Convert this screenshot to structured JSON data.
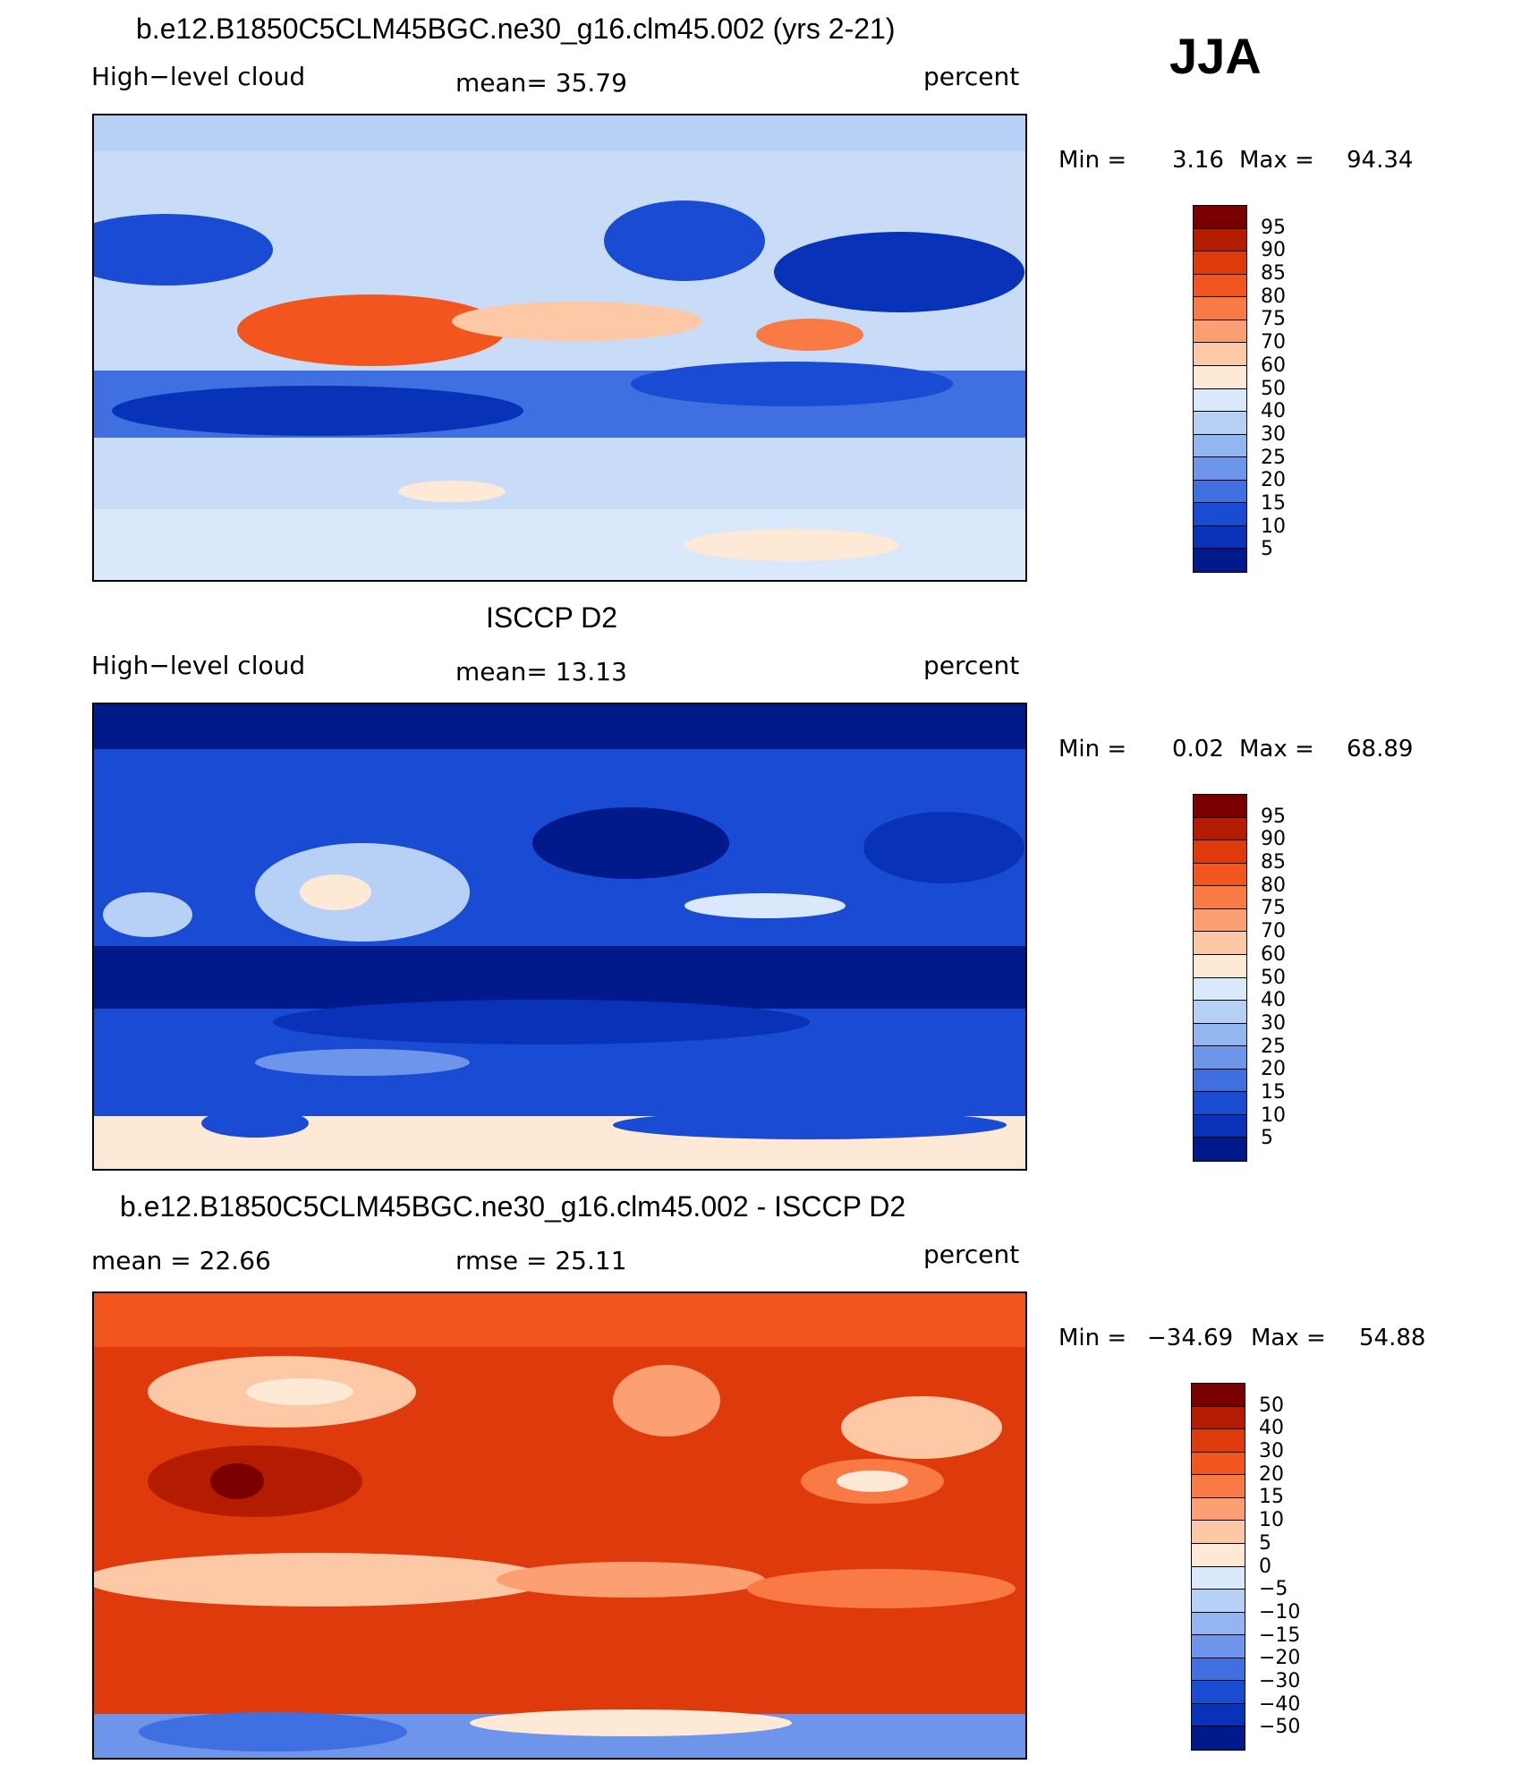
{
  "season": "JJA",
  "units_top": "percent",
  "panels": [
    {
      "title": "b.e12.B1850C5CLM45BGC.ne30_g16.clm45.002 (yrs 2-21)",
      "variable": "High−level cloud",
      "stat_left": "",
      "stat_mid": "mean=   35.79",
      "units": "percent",
      "min_label": "Min =",
      "min_value": "3.16",
      "max_label": "Max =",
      "max_value": "94.34"
    },
    {
      "title": "ISCCP D2",
      "variable": "High−level cloud",
      "stat_left": "",
      "stat_mid": "mean=   13.13",
      "units": "percent",
      "min_label": "Min =",
      "min_value": "0.02",
      "max_label": "Max =",
      "max_value": "68.89"
    },
    {
      "title": "b.e12.B1850C5CLM45BGC.ne30_g16.clm45.002 - ISCCP D2",
      "variable": "",
      "stat_left": "mean =   22.66",
      "stat_mid": "rmse =   25.11",
      "units": "percent",
      "min_label": "Min =",
      "min_value": "−34.69",
      "max_label": "Max =",
      "max_value": "54.88"
    }
  ],
  "colorbar_abs": {
    "labels": [
      "95",
      "90",
      "85",
      "80",
      "75",
      "70",
      "60",
      "50",
      "40",
      "30",
      "25",
      "20",
      "15",
      "10",
      "5"
    ],
    "colors": [
      "#7a0000",
      "#b41c00",
      "#de3a0c",
      "#f2551e",
      "#fa7a46",
      "#fc9f73",
      "#fdc8a6",
      "#fde9d6",
      "#d9e8fa",
      "#b7d1f6",
      "#93b6f1",
      "#6d95ea",
      "#3f6fe0",
      "#1a4bd3",
      "#0832b8",
      "#001a8c"
    ]
  },
  "colorbar_diff": {
    "labels": [
      "50",
      "40",
      "30",
      "20",
      "15",
      "10",
      "5",
      "0",
      "−5",
      "−10",
      "−15",
      "−20",
      "−30",
      "−40",
      "−50"
    ],
    "colors": [
      "#7a0000",
      "#b41c00",
      "#de3a0c",
      "#f2551e",
      "#fa7a46",
      "#fc9f73",
      "#fdc8a6",
      "#fde9d6",
      "#d9e8fa",
      "#b7d1f6",
      "#93b6f1",
      "#6d95ea",
      "#3f6fe0",
      "#1a4bd3",
      "#0832b8",
      "#001a8c"
    ]
  }
}
